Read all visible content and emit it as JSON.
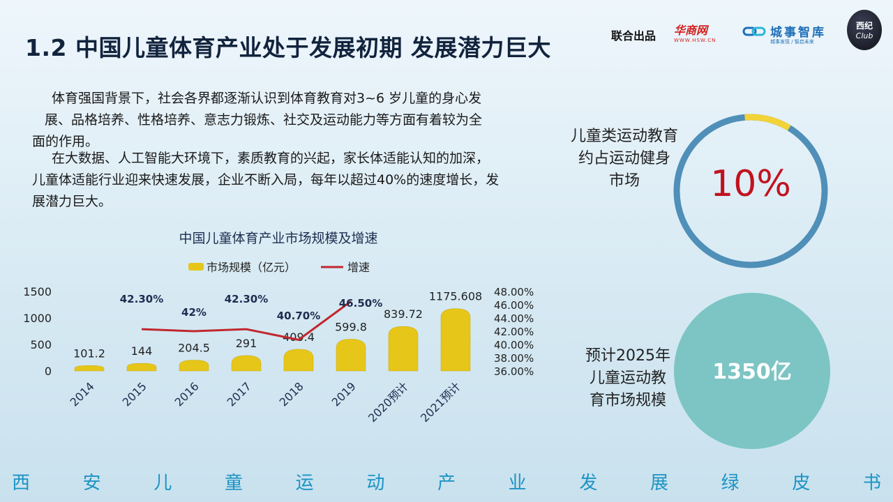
{
  "header": {
    "title": "1.2 中国儿童体育产业处于发展初期 发展潜力巨大",
    "joint_label": "联合出品",
    "logo_hsw_text": "华商网",
    "logo_hsw_url": "WWW.HSW.CN",
    "logo_cs_name": "城事智库",
    "logo_cs_sub": "城事发现 / 智启未来",
    "logo_club_top": "西纪",
    "logo_club_bottom": "Club"
  },
  "body": {
    "paragraph1_line1": "体育强国背景下，社会各界都逐渐认识到体育教育对3~6 岁儿童的身心发",
    "paragraph1_line2": "展、品格培养、性格培养、意志力锻炼、社交及运动能力等方面有着较为全",
    "paragraph1_line3": "面的作用。",
    "paragraph2_line1": "在大数据、人工智能大环境下，素质教育的兴起，家长体适能认知的加深，",
    "paragraph2_line2": "儿童体适能行业迎来快速发展，企业不断入局，每年以超过40%的速度增长，发",
    "paragraph2_line3": "展潜力巨大。"
  },
  "stats": {
    "share_label_line1": "儿童类运动教育",
    "share_label_line2": "约占运动健身",
    "share_label_line3": "市场",
    "share_value": "10%",
    "share_fraction": 0.1,
    "forecast_label_line1": "预计2025年",
    "forecast_label_line2": "儿童运动教",
    "forecast_label_line3": "育市场规模",
    "forecast_value": "1350亿",
    "colors": {
      "ring": "#4f8fb8",
      "ring_highlight": "#f2d338",
      "value_red": "#c1121f",
      "circle": "#7cc5c4"
    }
  },
  "footer": {
    "chars": [
      "西",
      "安",
      "儿",
      "童",
      "运",
      "动",
      "产",
      "业",
      "发",
      "展",
      "绿",
      "皮",
      "书"
    ]
  },
  "chart_data": {
    "type": "bar",
    "title": "中国儿童体育产业市场规模及增速",
    "categories": [
      "2014",
      "2015",
      "2016",
      "2017",
      "2018",
      "2019",
      "2020预计",
      "2021预计"
    ],
    "series": [
      {
        "name": "市场规模（亿元）",
        "type": "bar",
        "axis": "left",
        "values": [
          101.2,
          144,
          204.5,
          291,
          409.4,
          599.8,
          839.72,
          1175.608
        ],
        "labels": [
          "101.2",
          "144",
          "204.5",
          "291",
          "409.4",
          "599.8",
          "839.72",
          "1175.608"
        ]
      },
      {
        "name": "增速",
        "type": "line",
        "axis": "right",
        "values": [
          null,
          42.3,
          42.0,
          42.3,
          40.7,
          46.5,
          null,
          null
        ],
        "labels": [
          "",
          "42.30%",
          "42%",
          "42.30%",
          "40.70%",
          "46.50%",
          "",
          ""
        ]
      }
    ],
    "yaxis_left": {
      "ticks": [
        "1500",
        "1000",
        "500",
        "0"
      ],
      "min": 0,
      "max": 1500
    },
    "yaxis_right": {
      "ticks": [
        "48.00%",
        "46.00%",
        "44.00%",
        "42.00%",
        "40.00%",
        "38.00%",
        "36.00%"
      ],
      "min": 36,
      "max": 48
    },
    "legend_position": "top",
    "grid": false,
    "colors": {
      "bar": "#e6c619",
      "bar_top": "#f4df55",
      "line": "#c0282d",
      "text": "#1f2d50"
    }
  }
}
